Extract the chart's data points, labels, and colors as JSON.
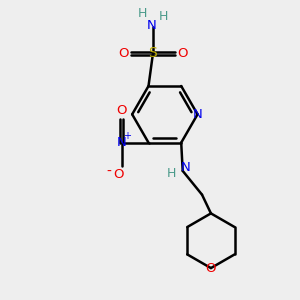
{
  "bg_color": "#eeeeee",
  "atom_colors": {
    "C": "#000000",
    "H": "#4a9a8a",
    "N": "#0000ee",
    "O": "#ee0000",
    "S": "#bbaa00"
  },
  "bond_color": "#000000",
  "bond_width": 1.8
}
